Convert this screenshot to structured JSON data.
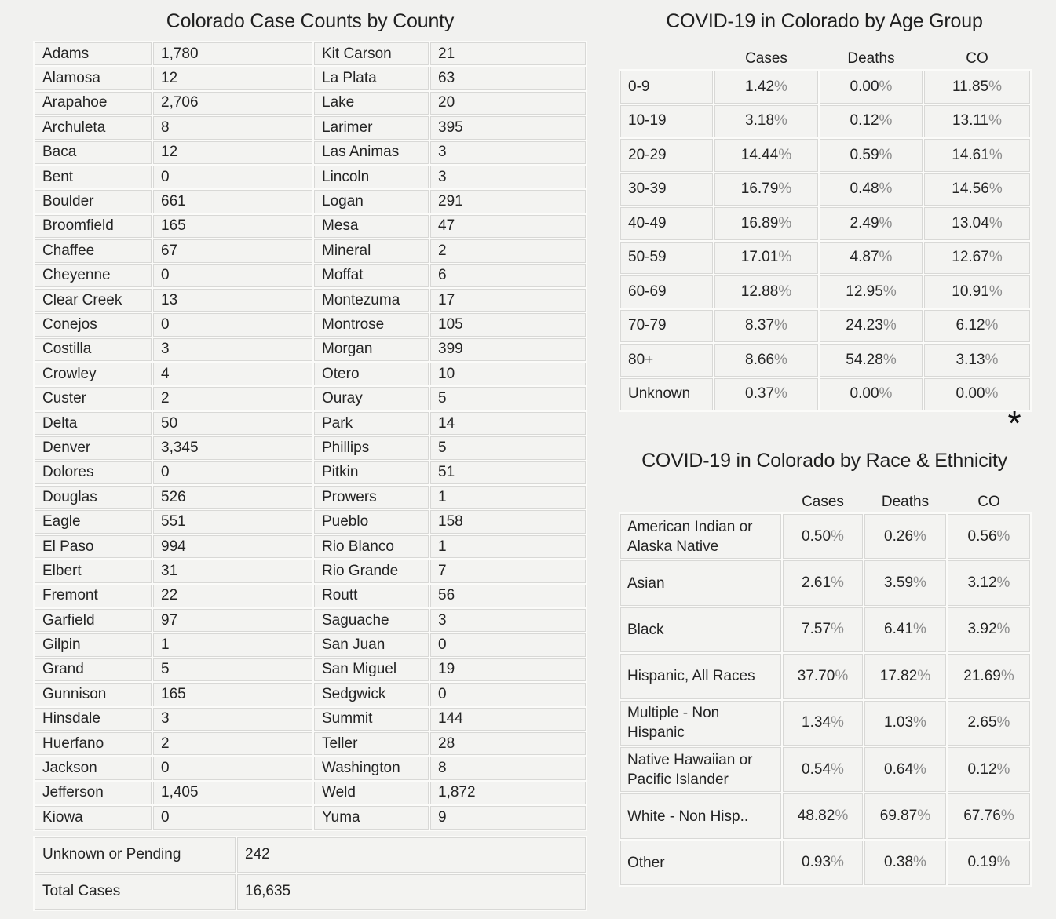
{
  "colors": {
    "page_background": "#f1f1ef",
    "cell_background": "#f3f3f1",
    "cell_border": "#d8d8d6",
    "text": "#242424",
    "percent_sign": "#8d8d8d"
  },
  "asterisk_mark": "*",
  "chart_data": [
    {
      "type": "table",
      "title": "Colorado Case Counts by County",
      "layout": "two-column county/value pairs, alphabetical, column-major",
      "rows": [
        [
          "Adams",
          "1,780"
        ],
        [
          "Alamosa",
          "12"
        ],
        [
          "Arapahoe",
          "2,706"
        ],
        [
          "Archuleta",
          "8"
        ],
        [
          "Baca",
          "12"
        ],
        [
          "Bent",
          "0"
        ],
        [
          "Boulder",
          "661"
        ],
        [
          "Broomfield",
          "165"
        ],
        [
          "Chaffee",
          "67"
        ],
        [
          "Cheyenne",
          "0"
        ],
        [
          "Clear Creek",
          "13"
        ],
        [
          "Conejos",
          "0"
        ],
        [
          "Costilla",
          "3"
        ],
        [
          "Crowley",
          "4"
        ],
        [
          "Custer",
          "2"
        ],
        [
          "Delta",
          "50"
        ],
        [
          "Denver",
          "3,345"
        ],
        [
          "Dolores",
          "0"
        ],
        [
          "Douglas",
          "526"
        ],
        [
          "Eagle",
          "551"
        ],
        [
          "El Paso",
          "994"
        ],
        [
          "Elbert",
          "31"
        ],
        [
          "Fremont",
          "22"
        ],
        [
          "Garfield",
          "97"
        ],
        [
          "Gilpin",
          "1"
        ],
        [
          "Grand",
          "5"
        ],
        [
          "Gunnison",
          "165"
        ],
        [
          "Hinsdale",
          "3"
        ],
        [
          "Huerfano",
          "2"
        ],
        [
          "Jackson",
          "0"
        ],
        [
          "Jefferson",
          "1,405"
        ],
        [
          "Kiowa",
          "0"
        ],
        [
          "Kit Carson",
          "21"
        ],
        [
          "La Plata",
          "63"
        ],
        [
          "Lake",
          "20"
        ],
        [
          "Larimer",
          "395"
        ],
        [
          "Las Animas",
          "3"
        ],
        [
          "Lincoln",
          "3"
        ],
        [
          "Logan",
          "291"
        ],
        [
          "Mesa",
          "47"
        ],
        [
          "Mineral",
          "2"
        ],
        [
          "Moffat",
          "6"
        ],
        [
          "Montezuma",
          "17"
        ],
        [
          "Montrose",
          "105"
        ],
        [
          "Morgan",
          "399"
        ],
        [
          "Otero",
          "10"
        ],
        [
          "Ouray",
          "5"
        ],
        [
          "Park",
          "14"
        ],
        [
          "Phillips",
          "5"
        ],
        [
          "Pitkin",
          "51"
        ],
        [
          "Prowers",
          "1"
        ],
        [
          "Pueblo",
          "158"
        ],
        [
          "Rio Blanco",
          "1"
        ],
        [
          "Rio Grande",
          "7"
        ],
        [
          "Routt",
          "56"
        ],
        [
          "Saguache",
          "3"
        ],
        [
          "San Juan",
          "0"
        ],
        [
          "San Miguel",
          "19"
        ],
        [
          "Sedgwick",
          "0"
        ],
        [
          "Summit",
          "144"
        ],
        [
          "Teller",
          "28"
        ],
        [
          "Washington",
          "8"
        ],
        [
          "Weld",
          "1,872"
        ],
        [
          "Yuma",
          "9"
        ]
      ],
      "footer": [
        [
          "Unknown or Pending",
          "242"
        ],
        [
          "Total Cases",
          "16,635"
        ]
      ]
    },
    {
      "type": "table",
      "title": "COVID-19 in Colorado by Age Group",
      "columns": [
        "Cases",
        "Deaths",
        "CO"
      ],
      "rows": [
        [
          "0-9",
          "1.42%",
          "0.00%",
          "11.85%"
        ],
        [
          "10-19",
          "3.18%",
          "0.12%",
          "13.11%"
        ],
        [
          "20-29",
          "14.44%",
          "0.59%",
          "14.61%"
        ],
        [
          "30-39",
          "16.79%",
          "0.48%",
          "14.56%"
        ],
        [
          "40-49",
          "16.89%",
          "2.49%",
          "13.04%"
        ],
        [
          "50-59",
          "17.01%",
          "4.87%",
          "12.67%"
        ],
        [
          "60-69",
          "12.88%",
          "12.95%",
          "10.91%"
        ],
        [
          "70-79",
          "8.37%",
          "24.23%",
          "6.12%"
        ],
        [
          "80+",
          "8.66%",
          "54.28%",
          "3.13%"
        ],
        [
          "Unknown",
          "0.37%",
          "0.00%",
          "0.00%"
        ]
      ]
    },
    {
      "type": "table",
      "title": "COVID-19 in Colorado by Race & Ethnicity",
      "columns": [
        "Cases",
        "Deaths",
        "CO"
      ],
      "rows": [
        [
          "American Indian or Alaska Native",
          "0.50%",
          "0.26%",
          "0.56%"
        ],
        [
          "Asian",
          "2.61%",
          "3.59%",
          "3.12%"
        ],
        [
          "Black",
          "7.57%",
          "6.41%",
          "3.92%"
        ],
        [
          "Hispanic, All Races",
          "37.70%",
          "17.82%",
          "21.69%"
        ],
        [
          "Multiple - Non Hispanic",
          "1.34%",
          "1.03%",
          "2.65%"
        ],
        [
          "Native Hawaiian or Pacific Islander",
          "0.54%",
          "0.64%",
          "0.12%"
        ],
        [
          "White - Non Hisp..",
          "48.82%",
          "69.87%",
          "67.76%"
        ],
        [
          "Other",
          "0.93%",
          "0.38%",
          "0.19%"
        ]
      ]
    }
  ]
}
